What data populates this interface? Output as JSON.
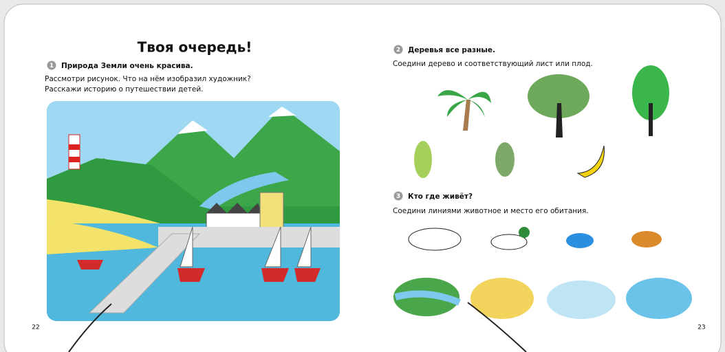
{
  "left_page": {
    "title": "Твоя очередь!",
    "task": {
      "number": 1,
      "heading": "Природа Земли очень красива.",
      "lines": [
        "Рассмотри рисунок. Что на нём изобразил художник?",
        "Расскажи историю о путешествии детей."
      ]
    },
    "page_number": 22
  },
  "right_page": {
    "tasks": [
      {
        "number": 2,
        "heading": "Деревья все разные.",
        "lines": [
          "Соедини дерево и соответствующий лист или плод."
        ]
      },
      {
        "number": 3,
        "heading": "Кто где живёт?",
        "lines": [
          "Соедини линиями животное и место его обитания."
        ]
      }
    ],
    "page_number": 23
  }
}
